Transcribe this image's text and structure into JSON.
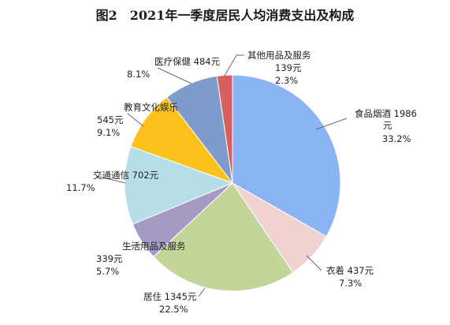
{
  "chart_data": {
    "type": "pie",
    "title": "图2　2021年一季度居民人均消费支出及构成",
    "start_angle_deg": 0,
    "direction": "clockwise",
    "slices": [
      {
        "name": "食品烟酒",
        "amount": "1986元",
        "percent": "33.2%",
        "value": 33.2,
        "color": "#8bb4f5"
      },
      {
        "name": "衣着",
        "amount": "437元",
        "percent": "7.3%",
        "value": 7.3,
        "color": "#f0d2d1"
      },
      {
        "name": "居住",
        "amount": "1345元",
        "percent": "22.5%",
        "value": 22.5,
        "color": "#c4d59a"
      },
      {
        "name": "生活用品及服务",
        "amount": "339元",
        "percent": "5.7%",
        "value": 5.7,
        "color": "#a69ac5"
      },
      {
        "name": "交通通信",
        "amount": "702元",
        "percent": "11.7%",
        "value": 11.7,
        "color": "#b5dee6"
      },
      {
        "name": "教育文化娱乐",
        "amount": "545元",
        "percent": "9.1%",
        "value": 9.1,
        "color": "#fcc21b"
      },
      {
        "name": "医疗保健",
        "amount": "484元",
        "percent": "8.1%",
        "value": 8.1,
        "color": "#7d9ccb"
      },
      {
        "name": "其他用品及服务",
        "amount": "139元",
        "percent": "2.3%",
        "value": 2.3,
        "color": "#d7605f"
      }
    ]
  }
}
